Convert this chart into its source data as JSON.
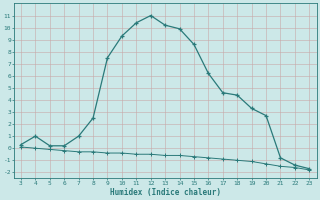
{
  "xlabel": "Humidex (Indice chaleur)",
  "line1_x": [
    3,
    4,
    5,
    6,
    7,
    8,
    9,
    10,
    11,
    12,
    13,
    14,
    15,
    16,
    17,
    18,
    19,
    20,
    21,
    22,
    23
  ],
  "line1_y": [
    0.3,
    1.0,
    0.2,
    0.2,
    1.0,
    2.5,
    7.5,
    9.3,
    10.4,
    11.0,
    10.2,
    9.9,
    8.6,
    6.2,
    4.6,
    4.4,
    3.3,
    2.7,
    -0.8,
    -1.4,
    -1.7
  ],
  "line2_x": [
    3,
    4,
    5,
    6,
    7,
    8,
    9,
    10,
    11,
    12,
    13,
    14,
    15,
    16,
    17,
    18,
    19,
    20,
    21,
    22,
    23
  ],
  "line2_y": [
    0.1,
    0.0,
    -0.1,
    -0.2,
    -0.3,
    -0.3,
    -0.4,
    -0.4,
    -0.5,
    -0.5,
    -0.6,
    -0.6,
    -0.7,
    -0.8,
    -0.9,
    -1.0,
    -1.1,
    -1.3,
    -1.5,
    -1.6,
    -1.8
  ],
  "line_color": "#2a7a7a",
  "bg_color": "#cce8e8",
  "grid_color": "#b8d8d8",
  "ylim": [
    -2.5,
    12
  ],
  "xlim": [
    2.5,
    23.5
  ],
  "yticks": [
    -2,
    -1,
    0,
    1,
    2,
    3,
    4,
    5,
    6,
    7,
    8,
    9,
    10,
    11
  ],
  "xticks": [
    3,
    4,
    5,
    6,
    7,
    8,
    9,
    10,
    11,
    12,
    13,
    14,
    15,
    16,
    17,
    18,
    19,
    20,
    21,
    22,
    23
  ]
}
